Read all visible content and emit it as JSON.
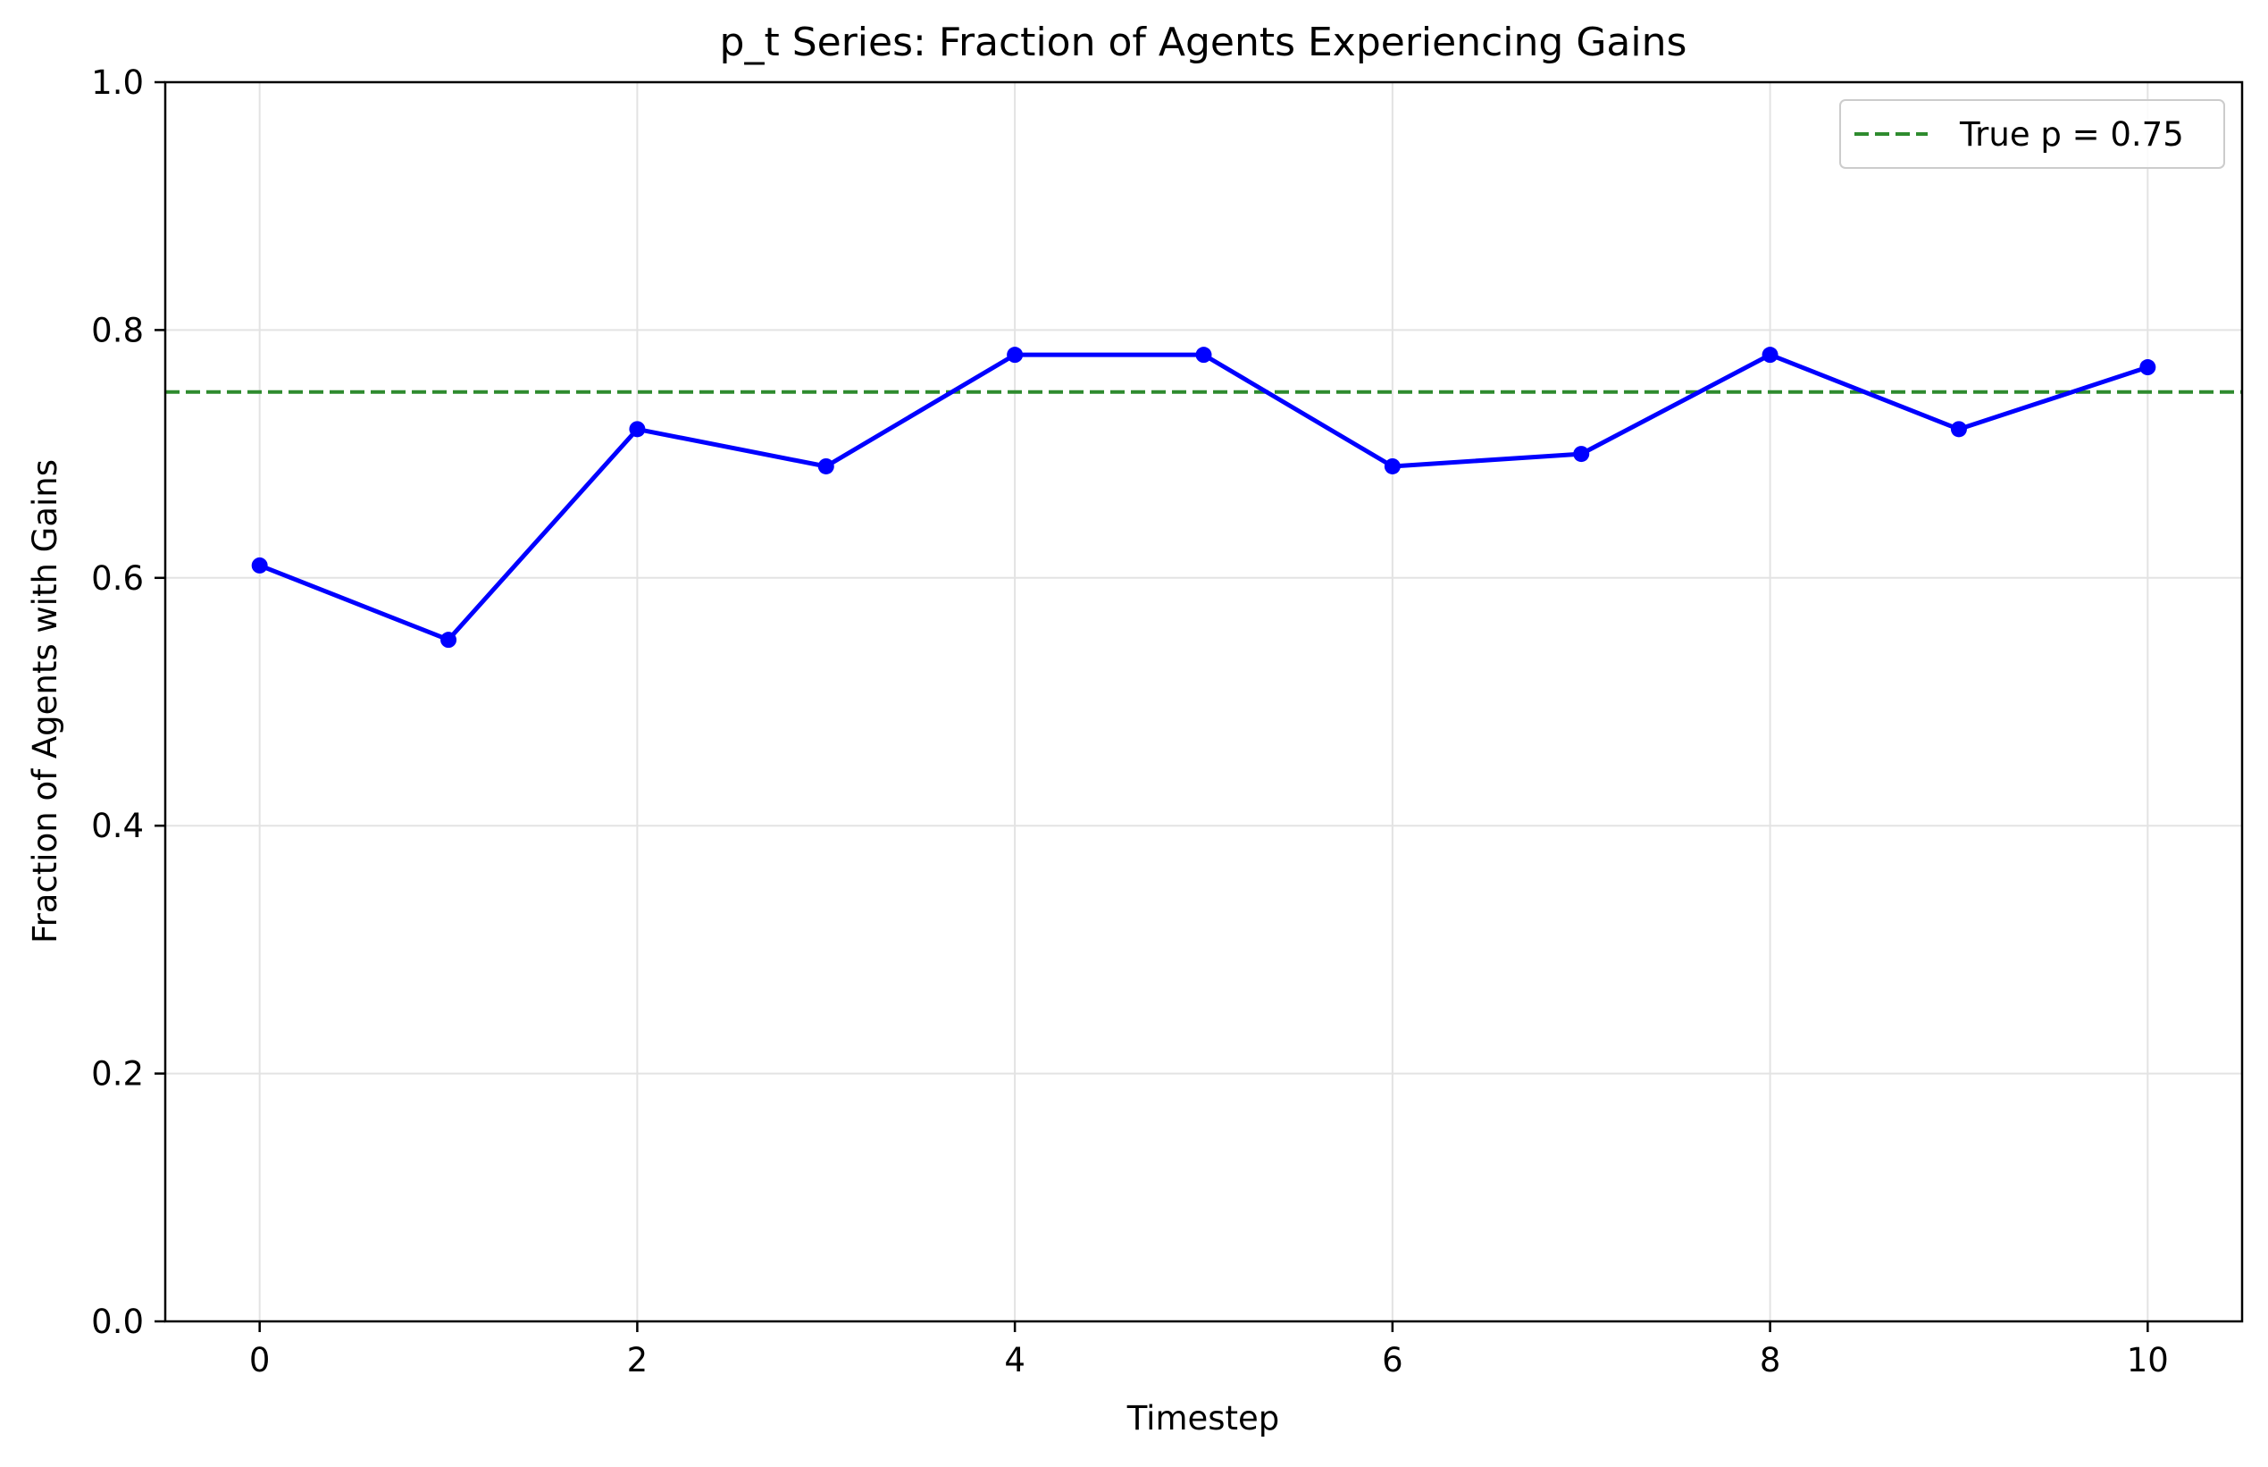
{
  "chart_data": {
    "type": "line",
    "title": "p_t Series: Fraction of Agents Experiencing Gains",
    "xlabel": "Timestep",
    "ylabel": "Fraction of Agents with Gains",
    "xlim": [
      -0.5,
      10.5
    ],
    "ylim": [
      0.0,
      1.0
    ],
    "xticks": [
      0,
      2,
      4,
      6,
      8,
      10
    ],
    "xtick_labels": [
      "0",
      "2",
      "4",
      "6",
      "8",
      "10"
    ],
    "yticks": [
      0.0,
      0.2,
      0.4,
      0.6,
      0.8,
      1.0
    ],
    "ytick_labels": [
      "0.0",
      "0.2",
      "0.4",
      "0.6",
      "0.8",
      "1.0"
    ],
    "grid": true,
    "legend_position": "top-right",
    "series": [
      {
        "color": "#0000ff",
        "style": "solid",
        "marker": "circle",
        "x": [
          0,
          1,
          2,
          3,
          4,
          5,
          6,
          7,
          8,
          9,
          10
        ],
        "values": [
          0.61,
          0.55,
          0.72,
          0.69,
          0.78,
          0.78,
          0.69,
          0.7,
          0.78,
          0.72,
          0.77
        ]
      }
    ],
    "reference_lines": [
      {
        "name": "True p = 0.75",
        "orientation": "horizontal",
        "y": 0.75,
        "color": "#2e8b2e",
        "style": "dashed"
      }
    ]
  }
}
